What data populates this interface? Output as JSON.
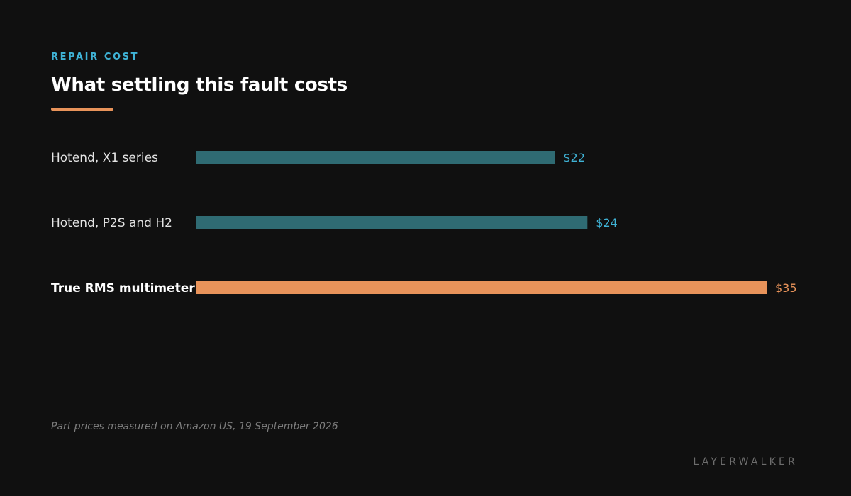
{
  "header": {
    "kicker": "REPAIR COST",
    "title": "What settling this fault costs"
  },
  "footer": {
    "note": "Part prices measured on Amazon US, 19 September 2026",
    "brand": "LAYERWALKER"
  },
  "colors": {
    "accent": "#e8935a",
    "bar_default": "#2f6b73",
    "value_default": "#3fb3d6",
    "label_default": "#e4e4e4"
  },
  "chart_data": {
    "type": "bar",
    "orientation": "horizontal",
    "title": "What settling this fault costs",
    "categories": [
      "Hotend, X1 series",
      "Hotend, P2S and H2",
      "True RMS multimeter"
    ],
    "values": [
      22,
      24,
      35
    ],
    "value_labels": [
      "$22",
      "$24",
      "$35"
    ],
    "highlight": [
      false,
      false,
      true
    ],
    "unit": "USD",
    "xlim": [
      0,
      35
    ],
    "grid": false,
    "legend": "none"
  }
}
